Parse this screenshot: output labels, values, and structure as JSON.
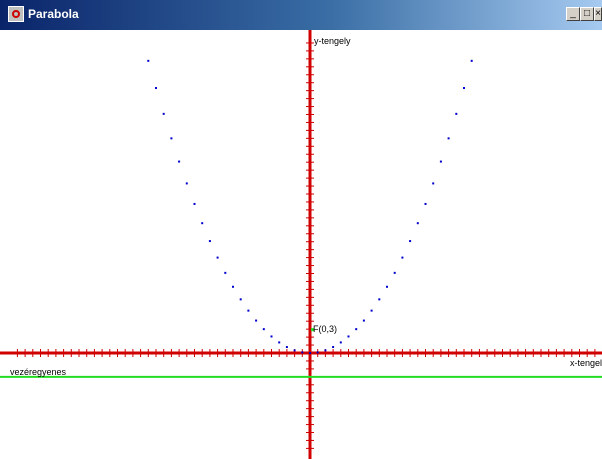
{
  "window": {
    "title": "Parabola"
  },
  "controls": {
    "minimize": "_",
    "maximize": "□",
    "close": "×"
  },
  "labels": {
    "y_axis": "y-tengely",
    "x_axis": "x-tengely",
    "directrix": "vezéregyenes",
    "focus": "F(0,3)"
  },
  "colors": {
    "axes": "#d00000",
    "points": "#0000cc",
    "directrix": "#22dd22",
    "focus": "#22dd22"
  },
  "chart_data": {
    "type": "scatter",
    "focus": {
      "x": 0,
      "y": 3
    },
    "directrix_y": -3,
    "xlim": [
      -38,
      38
    ],
    "ylim": [
      -12,
      39
    ],
    "series": [
      {
        "values": [
          [
            -21,
            36.75
          ],
          [
            -20,
            33.33
          ],
          [
            -19,
            30.08
          ],
          [
            -18,
            27
          ],
          [
            -17,
            24.08
          ],
          [
            -16,
            21.33
          ],
          [
            -15,
            18.75
          ],
          [
            -14,
            16.33
          ],
          [
            -13,
            14.08
          ],
          [
            -12,
            12
          ],
          [
            -11,
            10.08
          ],
          [
            -10,
            8.33
          ],
          [
            -9,
            6.75
          ],
          [
            -8,
            5.33
          ],
          [
            -7,
            4.08
          ],
          [
            -6,
            3
          ],
          [
            -5,
            2.08
          ],
          [
            -4,
            1.33
          ],
          [
            -3,
            0.75
          ],
          [
            -2,
            0.33
          ],
          [
            -1,
            0.08
          ],
          [
            0,
            0
          ],
          [
            1,
            0.08
          ],
          [
            2,
            0.33
          ],
          [
            3,
            0.75
          ],
          [
            4,
            1.33
          ],
          [
            5,
            2.08
          ],
          [
            6,
            3
          ],
          [
            7,
            4.08
          ],
          [
            8,
            5.33
          ],
          [
            9,
            6.75
          ],
          [
            10,
            8.33
          ],
          [
            11,
            10.08
          ],
          [
            12,
            12
          ],
          [
            13,
            14.08
          ],
          [
            14,
            16.33
          ],
          [
            15,
            18.75
          ],
          [
            16,
            21.33
          ],
          [
            17,
            24.08
          ],
          [
            18,
            27
          ],
          [
            19,
            30.08
          ],
          [
            20,
            33.33
          ],
          [
            21,
            36.75
          ]
        ]
      }
    ]
  }
}
